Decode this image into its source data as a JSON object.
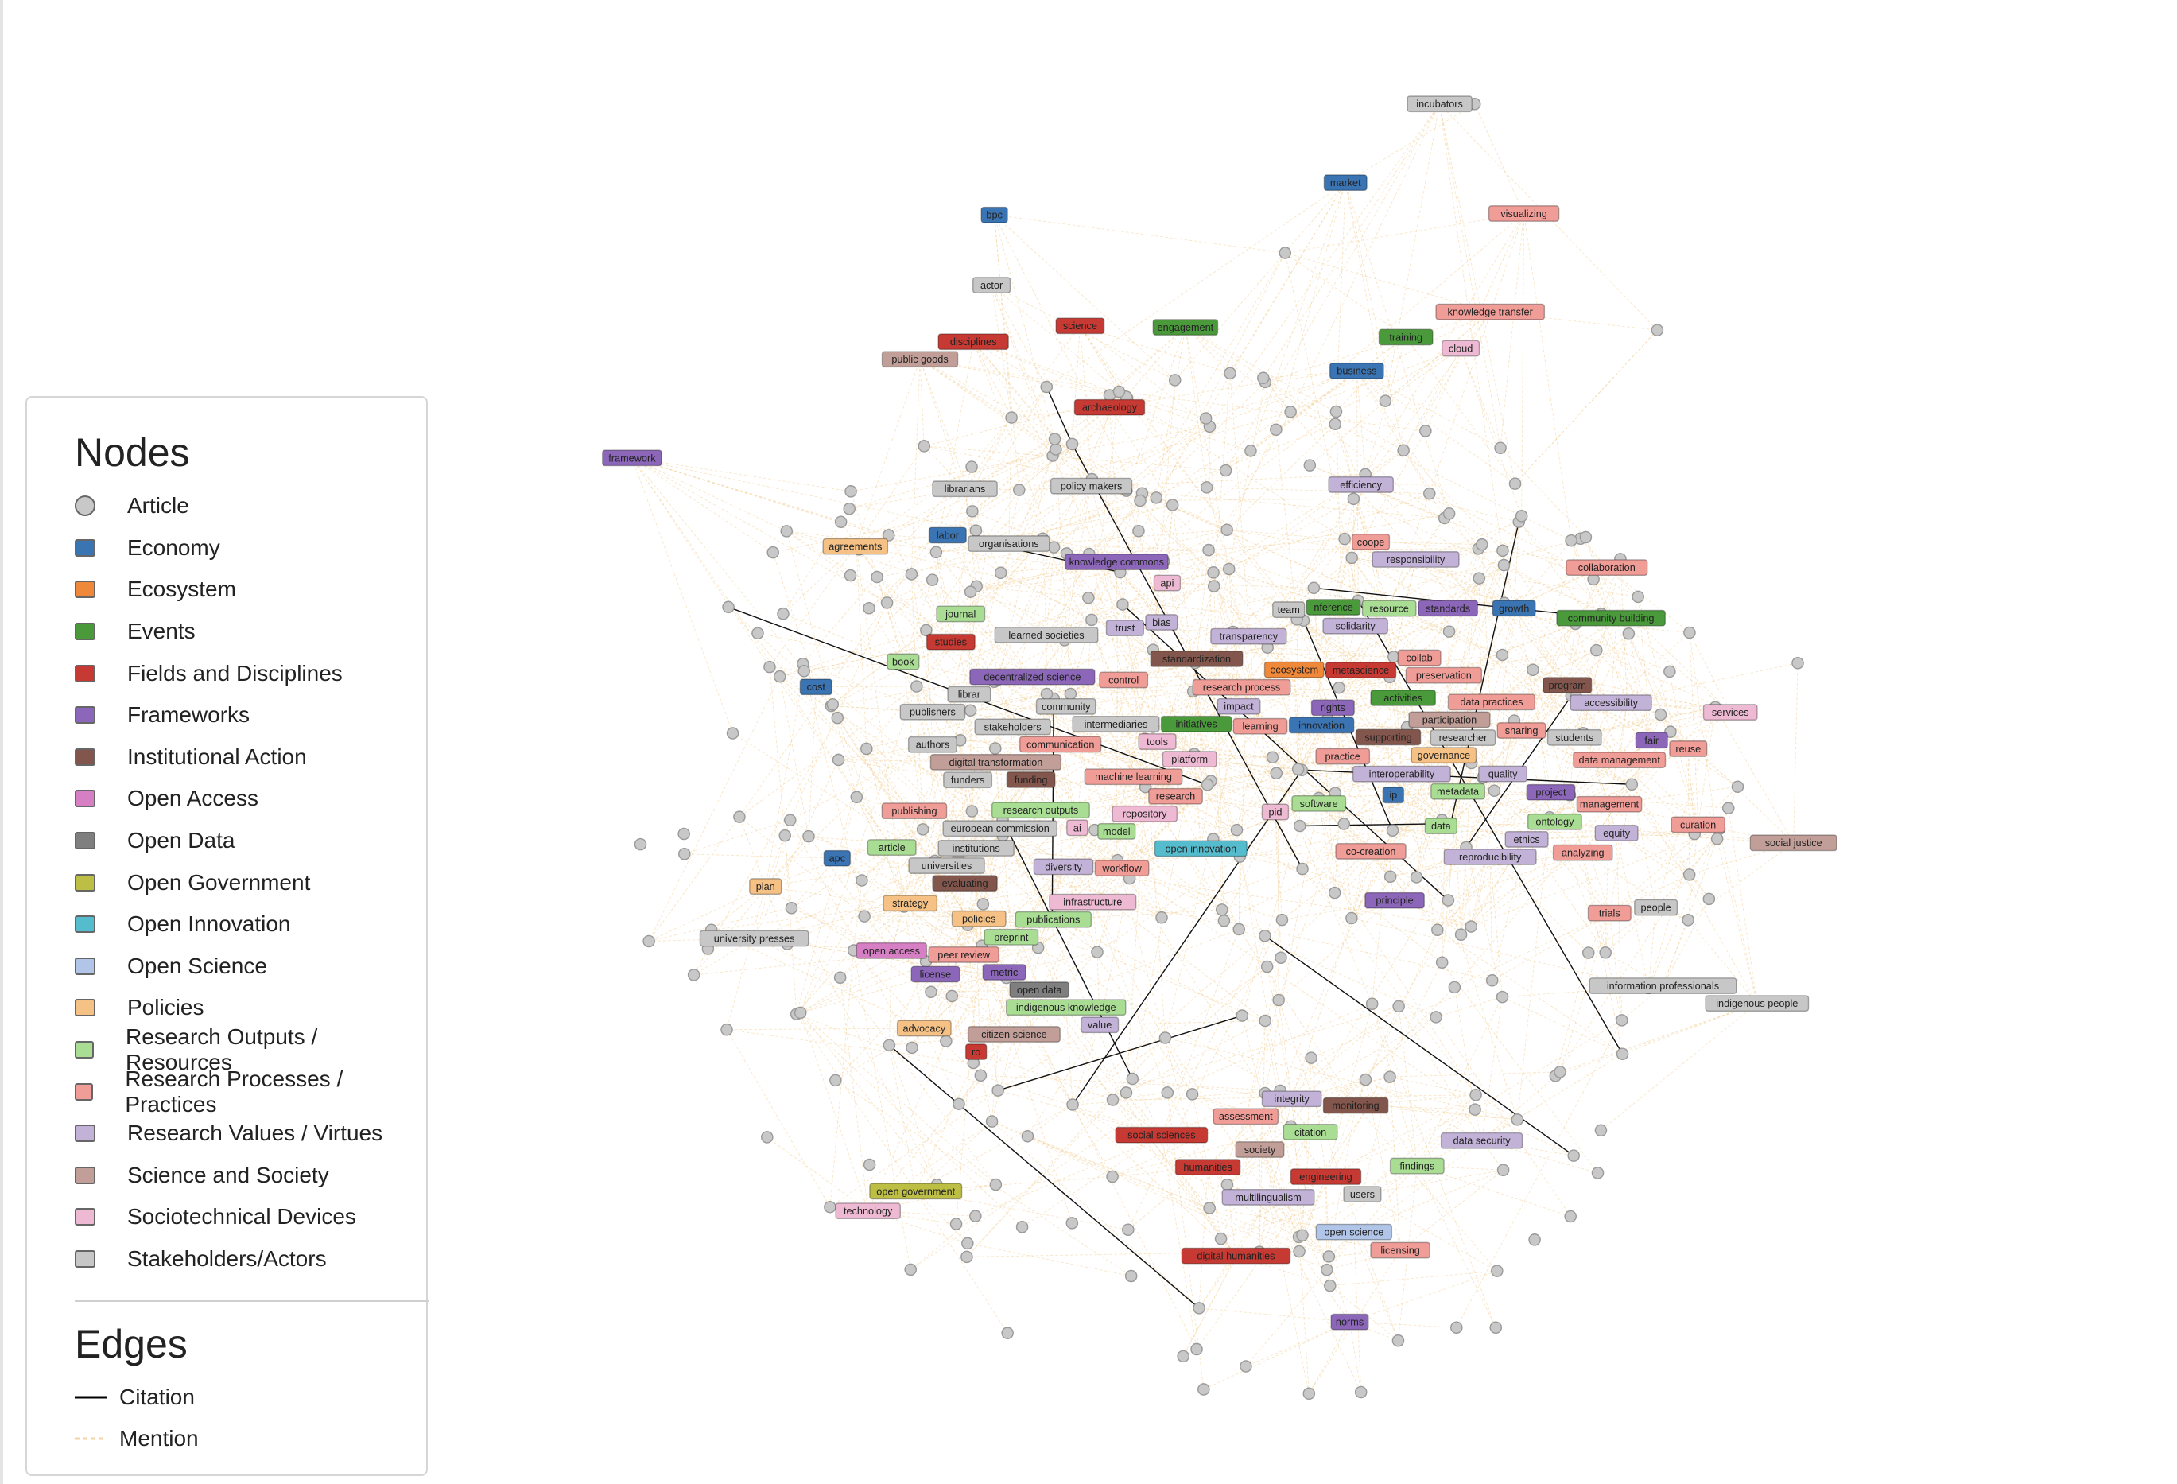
{
  "legend": {
    "nodes_title": "Nodes",
    "edges_title": "Edges",
    "node_types": [
      {
        "label": "Article",
        "color": "#c8c8c8",
        "shape": "circle"
      },
      {
        "label": "Economy",
        "color": "#3a74b2"
      },
      {
        "label": "Ecosystem",
        "color": "#f0883a"
      },
      {
        "label": "Events",
        "color": "#4a9a3c"
      },
      {
        "label": "Fields and Disciplines",
        "color": "#c63a33"
      },
      {
        "label": "Frameworks",
        "color": "#8c66b8"
      },
      {
        "label": "Institutional Action",
        "color": "#82564c"
      },
      {
        "label": "Open Access",
        "color": "#d77fc4"
      },
      {
        "label": "Open Data",
        "color": "#7f7f7f"
      },
      {
        "label": "Open Government",
        "color": "#bdbe44"
      },
      {
        "label": "Open Innovation",
        "color": "#55bccd"
      },
      {
        "label": "Open Science",
        "color": "#b0c5e8"
      },
      {
        "label": "Policies",
        "color": "#f5c185"
      },
      {
        "label": "Research Outputs / Resources",
        "color": "#a9dd94"
      },
      {
        "label": "Research Processes / Practices",
        "color": "#f09c97"
      },
      {
        "label": "Research Values / Virtues",
        "color": "#c3b2d7"
      },
      {
        "label": "Science and Society",
        "color": "#c19e98"
      },
      {
        "label": "Sociotechnical Devices",
        "color": "#eeb9d2"
      },
      {
        "label": "Stakeholders/Actors",
        "color": "#c7c7c7"
      }
    ],
    "edge_types": [
      {
        "label": "Citation",
        "color": "#000000",
        "style": "solid"
      },
      {
        "label": "Mention",
        "color": "#f5d3a0",
        "style": "dashed"
      }
    ]
  },
  "graph": {
    "article_color": "#c8c8c8",
    "nodes": [
      {
        "label": "incubators",
        "type": 18
      },
      {
        "label": "market",
        "type": 1
      },
      {
        "label": "visualizing",
        "type": 14
      },
      {
        "label": "bpc",
        "type": 1
      },
      {
        "label": "actor",
        "type": 18
      },
      {
        "label": "science",
        "type": 4
      },
      {
        "label": "engagement",
        "type": 3
      },
      {
        "label": "knowledge transfer",
        "type": 14
      },
      {
        "label": "training",
        "type": 3
      },
      {
        "label": "cloud",
        "type": 17
      },
      {
        "label": "disciplines",
        "type": 4
      },
      {
        "label": "public goods",
        "type": 16
      },
      {
        "label": "business",
        "type": 1
      },
      {
        "label": "archaeology",
        "type": 4
      },
      {
        "label": "framework",
        "type": 5
      },
      {
        "label": "librarians",
        "type": 18
      },
      {
        "label": "policy makers",
        "type": 18
      },
      {
        "label": "efficiency",
        "type": 15
      },
      {
        "label": "labor",
        "type": 1
      },
      {
        "label": "organisations",
        "type": 18
      },
      {
        "label": "agreements",
        "type": 12
      },
      {
        "label": "coope",
        "type": 14
      },
      {
        "label": "responsibility",
        "type": 15
      },
      {
        "label": "collaboration",
        "type": 14
      },
      {
        "label": "knowledge commons",
        "type": 5
      },
      {
        "label": "api",
        "type": 17
      },
      {
        "label": "journal",
        "type": 13
      },
      {
        "label": "nference",
        "type": 3
      },
      {
        "label": "team",
        "type": 18
      },
      {
        "label": "resource",
        "type": 13
      },
      {
        "label": "solidarity",
        "type": 15
      },
      {
        "label": "standards",
        "type": 5
      },
      {
        "label": "growth",
        "type": 1
      },
      {
        "label": "community building",
        "type": 3
      },
      {
        "label": "trust",
        "type": 15
      },
      {
        "label": "bias",
        "type": 15
      },
      {
        "label": "learned societies",
        "type": 18
      },
      {
        "label": "studies",
        "type": 4
      },
      {
        "label": "transparency",
        "type": 15
      },
      {
        "label": "standardization",
        "type": 6
      },
      {
        "label": "book",
        "type": 13
      },
      {
        "label": "control",
        "type": 14
      },
      {
        "label": "metascience",
        "type": 4
      },
      {
        "label": "collab",
        "type": 14
      },
      {
        "label": "preservation",
        "type": 14
      },
      {
        "label": "ecosystem",
        "type": 2
      },
      {
        "label": "research process",
        "type": 14
      },
      {
        "label": "cost",
        "type": 1
      },
      {
        "label": "librar",
        "type": 18
      },
      {
        "label": "decentralized science",
        "type": 5
      },
      {
        "label": "program",
        "type": 6
      },
      {
        "label": "accessibility",
        "type": 15
      },
      {
        "label": "publishers",
        "type": 18
      },
      {
        "label": "community",
        "type": 18
      },
      {
        "label": "rights",
        "type": 5
      },
      {
        "label": "activities",
        "type": 3
      },
      {
        "label": "data practices",
        "type": 14
      },
      {
        "label": "participation",
        "type": 16
      },
      {
        "label": "impact",
        "type": 15
      },
      {
        "label": "initiatives",
        "type": 3
      },
      {
        "label": "services",
        "type": 17
      },
      {
        "label": "intermediaries",
        "type": 18
      },
      {
        "label": "learning",
        "type": 14
      },
      {
        "label": "innovation",
        "type": 1
      },
      {
        "label": "sharing",
        "type": 14
      },
      {
        "label": "students",
        "type": 18
      },
      {
        "label": "stakeholders",
        "type": 18
      },
      {
        "label": "communication",
        "type": 14
      },
      {
        "label": "tools",
        "type": 17
      },
      {
        "label": "supporting",
        "type": 6
      },
      {
        "label": "researcher",
        "type": 18
      },
      {
        "label": "fair",
        "type": 5
      },
      {
        "label": "reuse",
        "type": 14
      },
      {
        "label": "authors",
        "type": 18
      },
      {
        "label": "digital transformation",
        "type": 16
      },
      {
        "label": "platform",
        "type": 17
      },
      {
        "label": "governance",
        "type": 12
      },
      {
        "label": "practice",
        "type": 14
      },
      {
        "label": "data management",
        "type": 14
      },
      {
        "label": "funders",
        "type": 18
      },
      {
        "label": "funding",
        "type": 6
      },
      {
        "label": "machine learning",
        "type": 14
      },
      {
        "label": "interoperability",
        "type": 15
      },
      {
        "label": "quality",
        "type": 15
      },
      {
        "label": "metadata",
        "type": 13
      },
      {
        "label": "ip",
        "type": 1
      },
      {
        "label": "project",
        "type": 5
      },
      {
        "label": "research",
        "type": 14
      },
      {
        "label": "software",
        "type": 13
      },
      {
        "label": "management",
        "type": 14
      },
      {
        "label": "repository",
        "type": 17
      },
      {
        "label": "pid",
        "type": 17
      },
      {
        "label": "publishing",
        "type": 14
      },
      {
        "label": "research outputs",
        "type": 13
      },
      {
        "label": "ai",
        "type": 17
      },
      {
        "label": "ontology",
        "type": 13
      },
      {
        "label": "data",
        "type": 13
      },
      {
        "label": "european commission",
        "type": 18
      },
      {
        "label": "model",
        "type": 13
      },
      {
        "label": "equity",
        "type": 15
      },
      {
        "label": "curation",
        "type": 14
      },
      {
        "label": "social justice",
        "type": 16
      },
      {
        "label": "article",
        "type": 13
      },
      {
        "label": "institutions",
        "type": 18
      },
      {
        "label": "open innovation",
        "type": 10
      },
      {
        "label": "co-creation",
        "type": 14
      },
      {
        "label": "reproducibility",
        "type": 15
      },
      {
        "label": "ethics",
        "type": 15
      },
      {
        "label": "analyzing",
        "type": 14
      },
      {
        "label": "apc",
        "type": 1
      },
      {
        "label": "universities",
        "type": 18
      },
      {
        "label": "diversity",
        "type": 15
      },
      {
        "label": "workflow",
        "type": 14
      },
      {
        "label": "evaluating",
        "type": 6
      },
      {
        "label": "plan",
        "type": 12
      },
      {
        "label": "principle",
        "type": 5
      },
      {
        "label": "strategy",
        "type": 12
      },
      {
        "label": "infrastructure",
        "type": 17
      },
      {
        "label": "trials",
        "type": 14
      },
      {
        "label": "people",
        "type": 18
      },
      {
        "label": "policies",
        "type": 12
      },
      {
        "label": "publications",
        "type": 13
      },
      {
        "label": "preprint",
        "type": 13
      },
      {
        "label": "university presses",
        "type": 18
      },
      {
        "label": "open access",
        "type": 7
      },
      {
        "label": "peer review",
        "type": 14
      },
      {
        "label": "license",
        "type": 5
      },
      {
        "label": "metric",
        "type": 5
      },
      {
        "label": "open data",
        "type": 8
      },
      {
        "label": "information professionals",
        "type": 18
      },
      {
        "label": "indigenous knowledge",
        "type": 13
      },
      {
        "label": "indigenous people",
        "type": 18
      },
      {
        "label": "value",
        "type": 15
      },
      {
        "label": "advocacy",
        "type": 12
      },
      {
        "label": "ro",
        "type": 4
      },
      {
        "label": "citizen science",
        "type": 16
      },
      {
        "label": "assessment",
        "type": 14
      },
      {
        "label": "integrity",
        "type": 15
      },
      {
        "label": "monitoring",
        "type": 6
      },
      {
        "label": "social sciences",
        "type": 4
      },
      {
        "label": "citation",
        "type": 13
      },
      {
        "label": "society",
        "type": 16
      },
      {
        "label": "data security",
        "type": 15
      },
      {
        "label": "humanities",
        "type": 4
      },
      {
        "label": "findings",
        "type": 13
      },
      {
        "label": "engineering",
        "type": 4
      },
      {
        "label": "multilingualism",
        "type": 15
      },
      {
        "label": "users",
        "type": 18
      },
      {
        "label": "open government",
        "type": 9
      },
      {
        "label": "technology",
        "type": 17
      },
      {
        "label": "open science",
        "type": 11
      },
      {
        "label": "licensing",
        "type": 14
      },
      {
        "label": "digital humanities",
        "type": 4
      },
      {
        "label": "norms",
        "type": 5
      }
    ]
  }
}
